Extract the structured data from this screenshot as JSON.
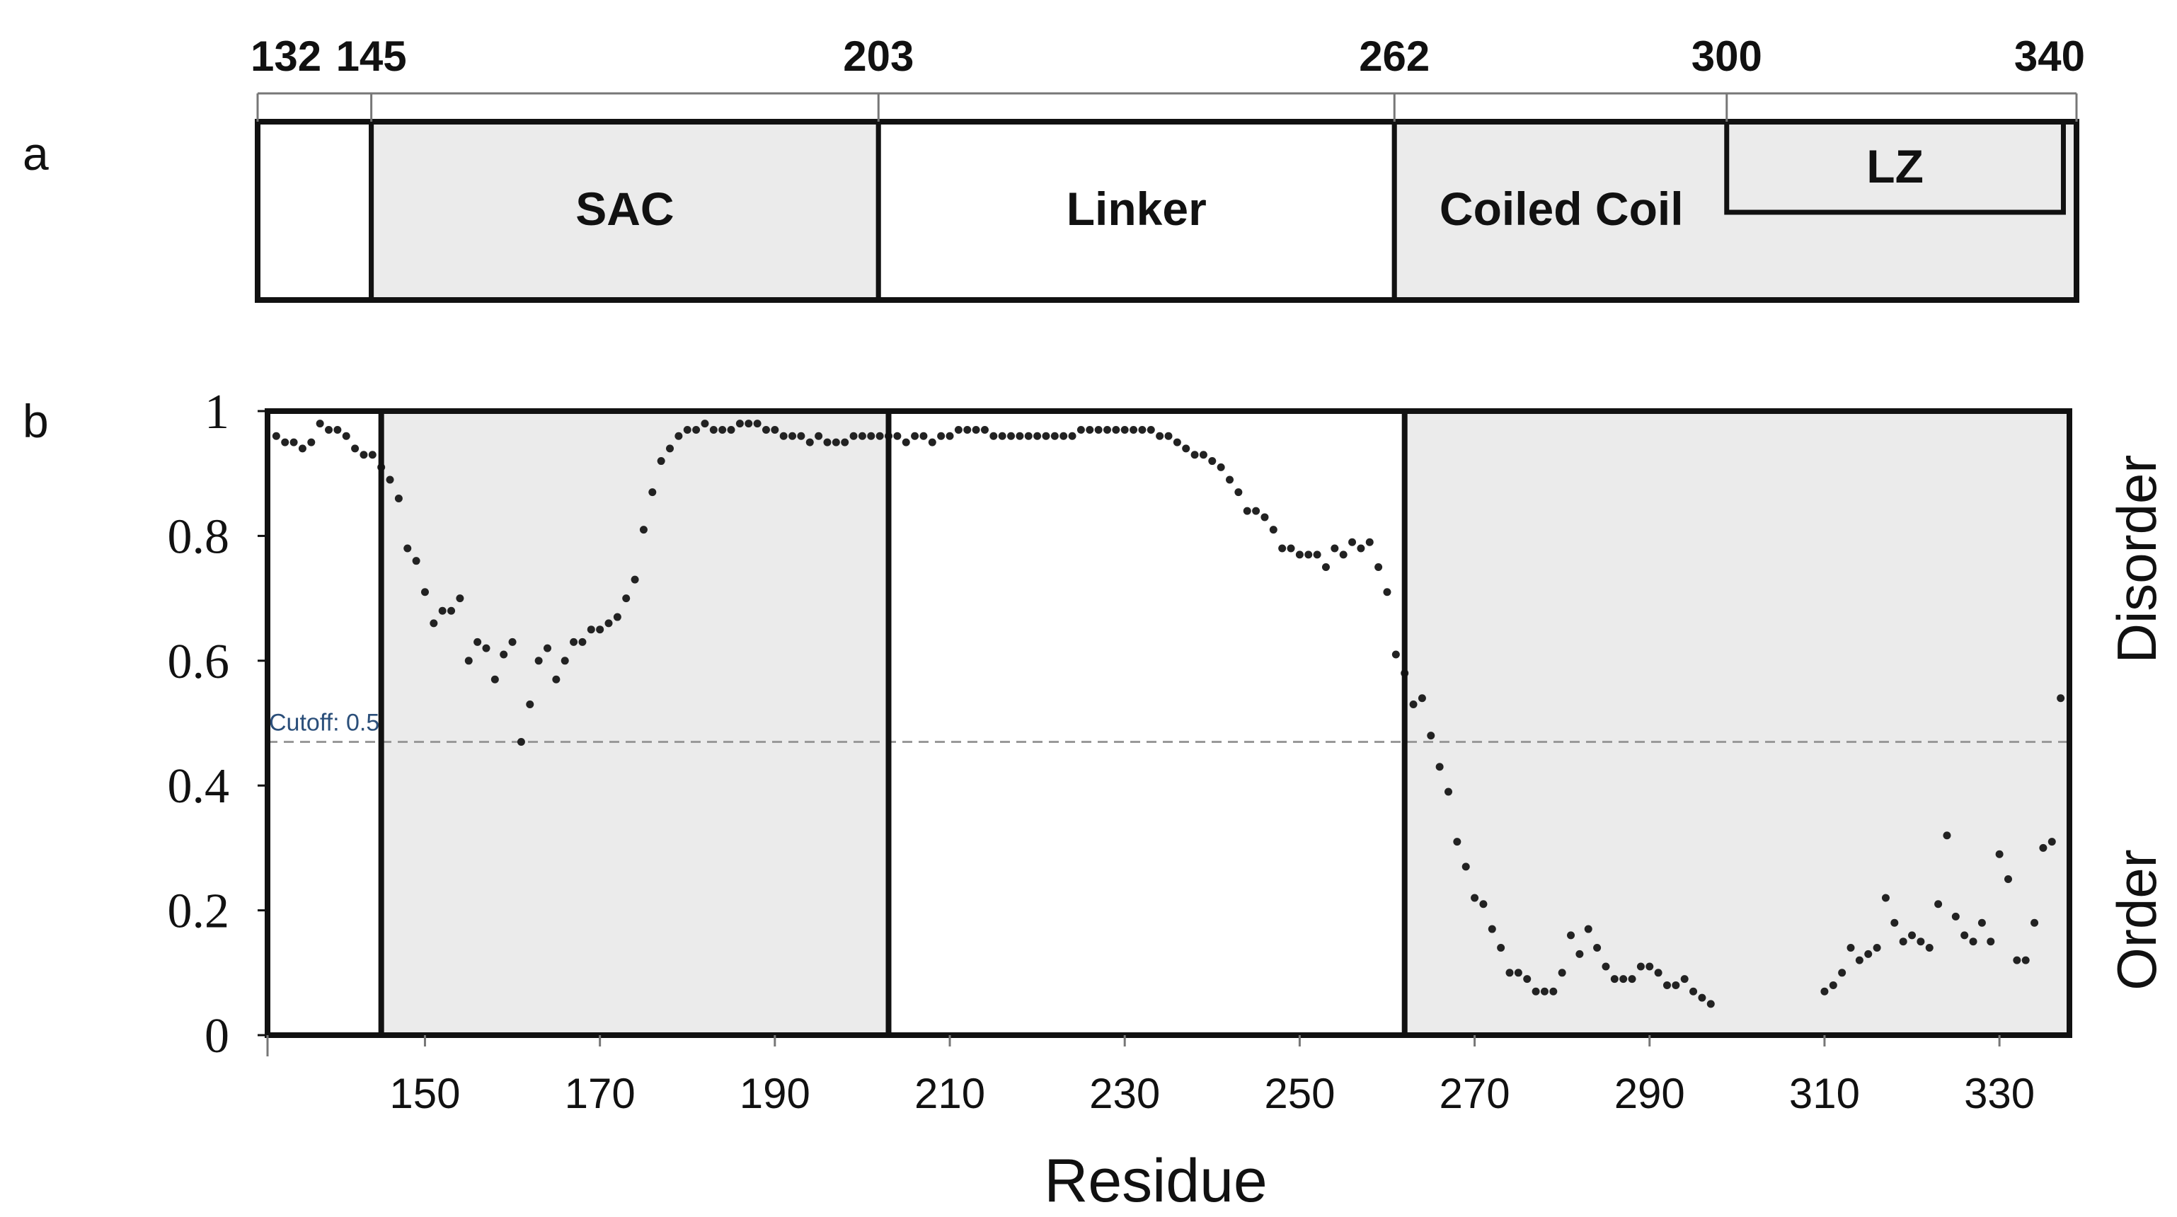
{
  "panel_labels": {
    "a": "a",
    "b": "b"
  },
  "domain_map": {
    "boundary_ticks": [
      132,
      145,
      203,
      262,
      300,
      340
    ],
    "domains": [
      {
        "name": "",
        "start": 132,
        "end": 145,
        "shaded": false
      },
      {
        "name": "SAC",
        "start": 145,
        "end": 203,
        "shaded": true
      },
      {
        "name": "Linker",
        "start": 203,
        "end": 262,
        "shaded": false
      },
      {
        "name": "Coiled Coil",
        "start": 262,
        "end": 340,
        "shaded": true
      }
    ],
    "subdomain": {
      "name": "LZ",
      "start": 300,
      "end": 338.5
    }
  },
  "chart_data": {
    "type": "scatter",
    "xlabel": "Residue",
    "ylabel_top": "Disorder",
    "ylabel_bottom": "Order",
    "xlim": [
      132,
      338
    ],
    "ylim": [
      0,
      1
    ],
    "x_ticks": [
      150,
      170,
      190,
      210,
      230,
      250,
      270,
      290,
      310,
      330
    ],
    "y_ticks": [
      0,
      0.2,
      0.4,
      0.6,
      0.8,
      1
    ],
    "y_tick_labels": [
      "0",
      "0.2",
      "0.4",
      "0.6",
      "0.8",
      "1"
    ],
    "cutoff": {
      "value": 0.47,
      "label": "Cutoff: 0.5"
    },
    "region_boundaries": [
      145,
      203,
      262
    ],
    "shaded_regions": [
      [
        145,
        203
      ],
      [
        262,
        338
      ]
    ],
    "points": [
      [
        133,
        0.96
      ],
      [
        134,
        0.95
      ],
      [
        135,
        0.95
      ],
      [
        136,
        0.94
      ],
      [
        137,
        0.95
      ],
      [
        138,
        0.98
      ],
      [
        139,
        0.97
      ],
      [
        140,
        0.97
      ],
      [
        141,
        0.96
      ],
      [
        142,
        0.94
      ],
      [
        143,
        0.93
      ],
      [
        144,
        0.93
      ],
      [
        145,
        0.91
      ],
      [
        146,
        0.89
      ],
      [
        147,
        0.86
      ],
      [
        148,
        0.78
      ],
      [
        149,
        0.76
      ],
      [
        150,
        0.71
      ],
      [
        151,
        0.66
      ],
      [
        152,
        0.68
      ],
      [
        153,
        0.68
      ],
      [
        154,
        0.7
      ],
      [
        155,
        0.6
      ],
      [
        156,
        0.63
      ],
      [
        157,
        0.62
      ],
      [
        158,
        0.57
      ],
      [
        159,
        0.61
      ],
      [
        160,
        0.63
      ],
      [
        161,
        0.47
      ],
      [
        162,
        0.53
      ],
      [
        163,
        0.6
      ],
      [
        164,
        0.62
      ],
      [
        165,
        0.57
      ],
      [
        166,
        0.6
      ],
      [
        167,
        0.63
      ],
      [
        168,
        0.63
      ],
      [
        169,
        0.65
      ],
      [
        170,
        0.65
      ],
      [
        171,
        0.66
      ],
      [
        172,
        0.67
      ],
      [
        173,
        0.7
      ],
      [
        174,
        0.73
      ],
      [
        175,
        0.81
      ],
      [
        176,
        0.87
      ],
      [
        177,
        0.92
      ],
      [
        178,
        0.94
      ],
      [
        179,
        0.96
      ],
      [
        180,
        0.97
      ],
      [
        181,
        0.97
      ],
      [
        182,
        0.98
      ],
      [
        183,
        0.97
      ],
      [
        184,
        0.97
      ],
      [
        185,
        0.97
      ],
      [
        186,
        0.98
      ],
      [
        187,
        0.98
      ],
      [
        188,
        0.98
      ],
      [
        189,
        0.97
      ],
      [
        190,
        0.97
      ],
      [
        191,
        0.96
      ],
      [
        192,
        0.96
      ],
      [
        193,
        0.96
      ],
      [
        194,
        0.95
      ],
      [
        195,
        0.96
      ],
      [
        196,
        0.95
      ],
      [
        197,
        0.95
      ],
      [
        198,
        0.95
      ],
      [
        199,
        0.96
      ],
      [
        200,
        0.96
      ],
      [
        201,
        0.96
      ],
      [
        202,
        0.96
      ],
      [
        203,
        0.96
      ],
      [
        204,
        0.96
      ],
      [
        205,
        0.95
      ],
      [
        206,
        0.96
      ],
      [
        207,
        0.96
      ],
      [
        208,
        0.95
      ],
      [
        209,
        0.96
      ],
      [
        210,
        0.96
      ],
      [
        211,
        0.97
      ],
      [
        212,
        0.97
      ],
      [
        213,
        0.97
      ],
      [
        214,
        0.97
      ],
      [
        215,
        0.96
      ],
      [
        216,
        0.96
      ],
      [
        217,
        0.96
      ],
      [
        218,
        0.96
      ],
      [
        219,
        0.96
      ],
      [
        220,
        0.96
      ],
      [
        221,
        0.96
      ],
      [
        222,
        0.96
      ],
      [
        223,
        0.96
      ],
      [
        224,
        0.96
      ],
      [
        225,
        0.97
      ],
      [
        226,
        0.97
      ],
      [
        227,
        0.97
      ],
      [
        228,
        0.97
      ],
      [
        229,
        0.97
      ],
      [
        230,
        0.97
      ],
      [
        231,
        0.97
      ],
      [
        232,
        0.97
      ],
      [
        233,
        0.97
      ],
      [
        234,
        0.96
      ],
      [
        235,
        0.96
      ],
      [
        236,
        0.95
      ],
      [
        237,
        0.94
      ],
      [
        238,
        0.93
      ],
      [
        239,
        0.93
      ],
      [
        240,
        0.92
      ],
      [
        241,
        0.91
      ],
      [
        242,
        0.89
      ],
      [
        243,
        0.87
      ],
      [
        244,
        0.84
      ],
      [
        245,
        0.84
      ],
      [
        246,
        0.83
      ],
      [
        247,
        0.81
      ],
      [
        248,
        0.78
      ],
      [
        249,
        0.78
      ],
      [
        250,
        0.77
      ],
      [
        251,
        0.77
      ],
      [
        252,
        0.77
      ],
      [
        253,
        0.75
      ],
      [
        254,
        0.78
      ],
      [
        255,
        0.77
      ],
      [
        256,
        0.79
      ],
      [
        257,
        0.78
      ],
      [
        258,
        0.79
      ],
      [
        259,
        0.75
      ],
      [
        260,
        0.71
      ],
      [
        261,
        0.61
      ],
      [
        262,
        0.58
      ],
      [
        263,
        0.53
      ],
      [
        264,
        0.54
      ],
      [
        265,
        0.48
      ],
      [
        266,
        0.43
      ],
      [
        267,
        0.39
      ],
      [
        268,
        0.31
      ],
      [
        269,
        0.27
      ],
      [
        270,
        0.22
      ],
      [
        271,
        0.21
      ],
      [
        272,
        0.17
      ],
      [
        273,
        0.14
      ],
      [
        274,
        0.1
      ],
      [
        275,
        0.1
      ],
      [
        276,
        0.09
      ],
      [
        277,
        0.07
      ],
      [
        278,
        0.07
      ],
      [
        279,
        0.07
      ],
      [
        280,
        0.1
      ],
      [
        281,
        0.16
      ],
      [
        282,
        0.13
      ],
      [
        283,
        0.17
      ],
      [
        284,
        0.14
      ],
      [
        285,
        0.11
      ],
      [
        286,
        0.09
      ],
      [
        287,
        0.09
      ],
      [
        288,
        0.09
      ],
      [
        289,
        0.11
      ],
      [
        290,
        0.11
      ],
      [
        291,
        0.1
      ],
      [
        292,
        0.08
      ],
      [
        293,
        0.08
      ],
      [
        294,
        0.09
      ],
      [
        295,
        0.07
      ],
      [
        296,
        0.06
      ],
      [
        297,
        0.05
      ],
      [
        310,
        0.07
      ],
      [
        311,
        0.08
      ],
      [
        312,
        0.1
      ],
      [
        313,
        0.14
      ],
      [
        314,
        0.12
      ],
      [
        315,
        0.13
      ],
      [
        316,
        0.14
      ],
      [
        317,
        0.22
      ],
      [
        318,
        0.18
      ],
      [
        319,
        0.15
      ],
      [
        320,
        0.16
      ],
      [
        321,
        0.15
      ],
      [
        322,
        0.14
      ],
      [
        323,
        0.21
      ],
      [
        324,
        0.32
      ],
      [
        325,
        0.19
      ],
      [
        326,
        0.16
      ],
      [
        327,
        0.15
      ],
      [
        328,
        0.18
      ],
      [
        329,
        0.15
      ],
      [
        330,
        0.29
      ],
      [
        331,
        0.25
      ],
      [
        332,
        0.12
      ],
      [
        333,
        0.12
      ],
      [
        334,
        0.18
      ],
      [
        335,
        0.3
      ],
      [
        336,
        0.31
      ],
      [
        337,
        0.54
      ]
    ]
  }
}
